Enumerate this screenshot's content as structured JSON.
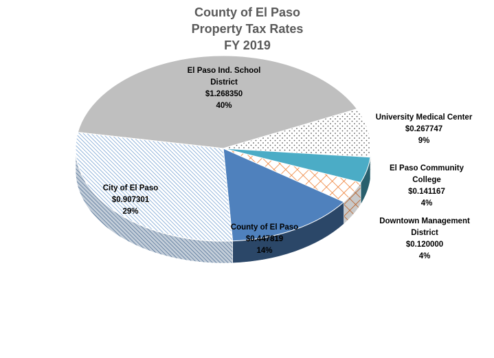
{
  "chart_data": {
    "type": "pie",
    "title": [
      "County of El Paso",
      "Property Tax Rates",
      "FY 2019"
    ],
    "slices": [
      {
        "name": "El Paso Ind. School District",
        "label_lines": [
          "El Paso Ind. School",
          "District"
        ],
        "value": 1.26835,
        "value_label": "$1.268350",
        "percent_label": "40%",
        "color": "#bfbfbf",
        "pattern": "solid"
      },
      {
        "name": "University Medical Center",
        "label_lines": [
          "University Medical Center"
        ],
        "value": 0.267747,
        "value_label": "$0.267747",
        "percent_label": "9%",
        "color": "#595959",
        "pattern": "dots"
      },
      {
        "name": "El Paso Community College",
        "label_lines": [
          "El Paso Community",
          "College"
        ],
        "value": 0.141167,
        "value_label": "$0.141167",
        "percent_label": "4%",
        "color": "#4bacc6",
        "pattern": "solid"
      },
      {
        "name": "Downtown Management District",
        "label_lines": [
          "Downtown Management",
          "District"
        ],
        "value": 0.12,
        "value_label": "$0.120000",
        "percent_label": "4%",
        "color": "#ed7d31",
        "pattern": "crosshatch"
      },
      {
        "name": "County of El Paso",
        "label_lines": [
          "County of El Paso"
        ],
        "value": 0.447819,
        "value_label": "$0.447819",
        "percent_label": "14%",
        "color": "#4f81bd",
        "pattern": "solid"
      },
      {
        "name": "City of El Paso",
        "label_lines": [
          "City of El Paso"
        ],
        "value": 0.907301,
        "value_label": "$0.907301",
        "percent_label": "29%",
        "color": "#5b8fc9",
        "pattern": "diagonal"
      }
    ],
    "legend": "none"
  }
}
